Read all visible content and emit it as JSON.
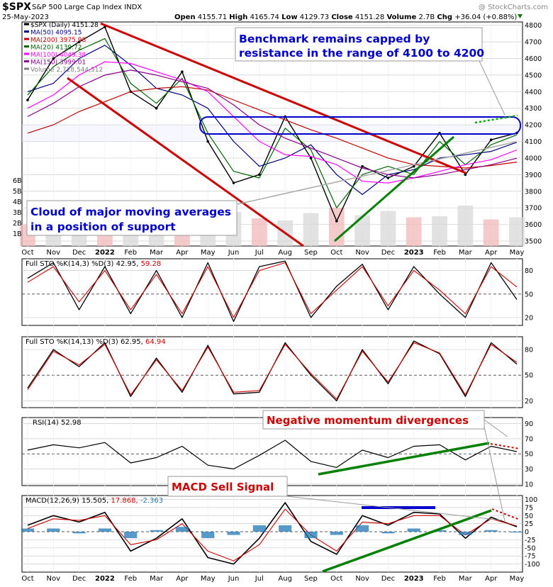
{
  "header": {
    "symbol": "$SPX",
    "name": "S&P 500 Large Cap Index",
    "exchange": "INDX",
    "date": "25-May-2023",
    "open_label": "Open",
    "open": "4155.71",
    "high_label": "High",
    "high": "4165.74",
    "low_label": "Low",
    "low": "4129.73",
    "close_label": "Close",
    "close": "4151.28",
    "volume_label": "Volume",
    "volume": "2.7B",
    "chg_label": "Chg",
    "chg": "+36.04 (+0.88%)",
    "watermark": "@ StockCharts.com"
  },
  "legend": [
    {
      "label": "$SPX (Daily) 4151.28",
      "color": "#000000"
    },
    {
      "label": "MA(50) 4095.15",
      "color": "#000080"
    },
    {
      "label": "MA(200) 3975.98",
      "color": "#c00000"
    },
    {
      "label": "MA(20) 4139.72",
      "color": "#006400"
    },
    {
      "label": "MA(100) 4049.38",
      "color": "#ff00ff"
    },
    {
      "label": "MA(150) 3999.01",
      "color": "#8b008b"
    },
    {
      "label": "Volume 2,728,544,512",
      "color": "#808080"
    }
  ],
  "annotations": {
    "benchmark": [
      "Benchmark remains capped by",
      "resistance in the range of 4100 to 4200"
    ],
    "cloud": [
      "Cloud of major moving averages",
      "in a position of support"
    ],
    "negative": "Negative momentum divergences",
    "macd_sell": "MACD Sell Signal"
  },
  "x_axis": {
    "labels": [
      {
        "text": "Oct",
        "bold": false
      },
      {
        "text": "Nov",
        "bold": false
      },
      {
        "text": "Dec",
        "bold": false
      },
      {
        "text": "2022",
        "bold": true
      },
      {
        "text": "Feb",
        "bold": false
      },
      {
        "text": "Mar",
        "bold": false
      },
      {
        "text": "Apr",
        "bold": false
      },
      {
        "text": "May",
        "bold": false
      },
      {
        "text": "Jun",
        "bold": false
      },
      {
        "text": "Jul",
        "bold": false
      },
      {
        "text": "Aug",
        "bold": false
      },
      {
        "text": "Sep",
        "bold": false
      },
      {
        "text": "Oct",
        "bold": false
      },
      {
        "text": "Nov",
        "bold": false
      },
      {
        "text": "Dec",
        "bold": false
      },
      {
        "text": "2023",
        "bold": true
      },
      {
        "text": "Feb",
        "bold": false
      },
      {
        "text": "Mar",
        "bold": false
      },
      {
        "text": "Apr",
        "bold": false
      },
      {
        "text": "May",
        "bold": false
      }
    ]
  },
  "chart_data": [
    {
      "type": "line",
      "panel": "price",
      "title": "$SPX S&P 500 Large Cap Index",
      "ylim": [
        3470,
        4820
      ],
      "y_ticks": [
        3500,
        3600,
        3700,
        3800,
        3900,
        4000,
        4100,
        4200,
        4300,
        4400,
        4500,
        4600,
        4700,
        4800
      ],
      "volume_ticks": [
        "1B",
        "2B",
        "3B",
        "4B",
        "5B",
        "6B"
      ],
      "x": [
        "Oct 2021",
        "Nov 2021",
        "Dec 2021",
        "Jan 2022",
        "Feb 2022",
        "Mar 2022",
        "Apr 2022",
        "May 2022",
        "Jun 2022",
        "Jul 2022",
        "Aug 2022",
        "Sep 2022",
        "Oct 2022",
        "Nov 2022",
        "Dec 2022",
        "Jan 2023",
        "Feb 2023",
        "Mar 2023",
        "Apr 2023",
        "May 2023"
      ],
      "series": [
        {
          "name": "$SPX (Daily)",
          "values": [
            4350,
            4600,
            4700,
            4790,
            4400,
            4300,
            4520,
            4100,
            3850,
            3900,
            4250,
            4000,
            3620,
            3950,
            3880,
            3950,
            4150,
            3900,
            4110,
            4151
          ]
        },
        {
          "name": "MA(50)",
          "values": [
            4400,
            4450,
            4600,
            4680,
            4560,
            4420,
            4380,
            4300,
            4100,
            3950,
            4000,
            4080,
            3900,
            3780,
            3900,
            3930,
            4000,
            4020,
            4040,
            4095
          ]
        },
        {
          "name": "MA(200)",
          "values": [
            4150,
            4200,
            4280,
            4340,
            4400,
            4420,
            4430,
            4410,
            4350,
            4290,
            4230,
            4170,
            4120,
            4060,
            4000,
            3960,
            3950,
            3940,
            3955,
            3976
          ]
        },
        {
          "name": "MA(20)",
          "values": [
            4380,
            4550,
            4650,
            4720,
            4450,
            4330,
            4480,
            4150,
            3920,
            3880,
            4180,
            4050,
            3700,
            3900,
            3950,
            3900,
            4100,
            3960,
            4080,
            4140
          ]
        },
        {
          "name": "MA(100)",
          "values": [
            4300,
            4380,
            4500,
            4580,
            4570,
            4520,
            4470,
            4400,
            4250,
            4100,
            4020,
            4010,
            3960,
            3860,
            3850,
            3880,
            3920,
            3960,
            3990,
            4049
          ]
        },
        {
          "name": "MA(150)",
          "values": [
            4250,
            4330,
            4430,
            4500,
            4530,
            4500,
            4460,
            4420,
            4320,
            4200,
            4120,
            4060,
            4000,
            3940,
            3900,
            3880,
            3900,
            3930,
            3960,
            3999
          ]
        }
      ],
      "volume_values_billions": [
        2.0,
        2.2,
        2.4,
        2.8,
        2.9,
        3.0,
        2.7,
        3.4,
        3.2,
        2.6,
        2.4,
        3.1,
        3.6,
        2.9,
        3.3,
        2.7,
        2.8,
        3.8,
        2.5,
        2.7
      ],
      "resistance_band": [
        4100,
        4200
      ]
    },
    {
      "type": "line",
      "panel": "fast_stochastic",
      "label_main": "Full STO %K(14,3) %D(3) 42.95,",
      "label_signal": "59.28",
      "ylim": [
        10,
        95
      ],
      "y_ticks": [
        20,
        50,
        80
      ],
      "series": [
        {
          "name": "%K",
          "values": [
            70,
            90,
            30,
            85,
            25,
            80,
            20,
            90,
            15,
            85,
            92,
            20,
            60,
            88,
            30,
            85,
            50,
            20,
            90,
            43
          ]
        },
        {
          "name": "%D",
          "values": [
            65,
            85,
            40,
            80,
            30,
            75,
            25,
            85,
            20,
            80,
            90,
            25,
            55,
            85,
            35,
            80,
            55,
            25,
            85,
            59
          ]
        }
      ]
    },
    {
      "type": "line",
      "panel": "slow_stochastic",
      "label_main": "Full STO %K(14,13) %D(3) 62.95,",
      "label_signal": "64.94",
      "ylim": [
        12,
        95
      ],
      "y_ticks": [
        20,
        50,
        80
      ],
      "series": [
        {
          "name": "%K",
          "values": [
            35,
            80,
            60,
            88,
            25,
            70,
            30,
            85,
            28,
            30,
            88,
            50,
            20,
            80,
            40,
            90,
            75,
            25,
            88,
            63
          ]
        },
        {
          "name": "%D",
          "values": [
            33,
            78,
            62,
            86,
            27,
            68,
            32,
            83,
            30,
            32,
            86,
            52,
            22,
            78,
            42,
            88,
            76,
            27,
            86,
            65
          ]
        }
      ]
    },
    {
      "type": "line",
      "panel": "rsi",
      "label_main": "RSI(14) 52.98",
      "ylim": [
        8,
        98
      ],
      "y_ticks": [
        10,
        30,
        50,
        70,
        90
      ],
      "series": [
        {
          "name": "RSI(14)",
          "values": [
            55,
            62,
            58,
            65,
            38,
            45,
            60,
            35,
            30,
            48,
            68,
            40,
            32,
            55,
            45,
            60,
            62,
            42,
            60,
            53
          ]
        }
      ]
    },
    {
      "type": "line",
      "panel": "macd",
      "label_main": "MACD(12,26,9) 15.505,",
      "label_signal": "17.868,",
      "label_hist": "-2.363",
      "ylim": [
        -125,
        112
      ],
      "y_ticks": [
        -100,
        -75,
        -50,
        -25,
        0,
        25,
        50,
        75,
        100
      ],
      "series": [
        {
          "name": "MACD",
          "values": [
            20,
            50,
            30,
            60,
            -60,
            -20,
            40,
            -80,
            -100,
            -20,
            90,
            -30,
            -70,
            50,
            20,
            60,
            55,
            -20,
            45,
            15.5
          ]
        },
        {
          "name": "Signal",
          "values": [
            10,
            40,
            35,
            50,
            -40,
            -25,
            25,
            -60,
            -90,
            -40,
            70,
            -10,
            -60,
            30,
            25,
            50,
            50,
            -10,
            40,
            17.9
          ]
        },
        {
          "name": "Histogram",
          "values": [
            10,
            10,
            -5,
            10,
            -20,
            5,
            15,
            -20,
            -10,
            20,
            20,
            -20,
            -10,
            20,
            -5,
            10,
            5,
            -10,
            5,
            -2.4
          ]
        }
      ]
    }
  ]
}
